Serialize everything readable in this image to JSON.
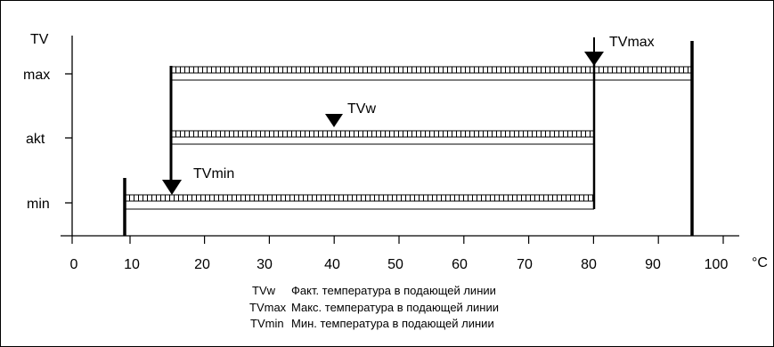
{
  "diagram": {
    "y_axis": {
      "title": "TV",
      "levels": [
        {
          "key": "max",
          "label": "max"
        },
        {
          "key": "akt",
          "label": "akt"
        },
        {
          "key": "min",
          "label": "min"
        }
      ]
    },
    "x_axis": {
      "unit": "°C",
      "ticks": [
        "0",
        "10",
        "20",
        "30",
        "40",
        "50",
        "60",
        "70",
        "80",
        "90",
        "100"
      ],
      "range": [
        0,
        100
      ]
    },
    "bars": [
      {
        "level": "max",
        "from": 15,
        "to": 95
      },
      {
        "level": "akt",
        "from": 15,
        "to": 80
      },
      {
        "level": "min",
        "from": 8,
        "to": 80
      }
    ],
    "markers": [
      {
        "id": "tvmax",
        "label": "TVmax",
        "x": 80,
        "level": "max"
      },
      {
        "id": "tvw",
        "label": "TVw",
        "x": 40,
        "level": "akt"
      },
      {
        "id": "tvmin",
        "label": "TVmin",
        "x": 15,
        "level": "min"
      }
    ],
    "legend": [
      {
        "abbr": "TVw",
        "text": "Факт. температура в подающей линии"
      },
      {
        "abbr": "TVmax",
        "text": "Макс. температура в подающей линии"
      },
      {
        "abbr": "TVmin",
        "text": "Мин. температура в подающей линии"
      }
    ]
  }
}
